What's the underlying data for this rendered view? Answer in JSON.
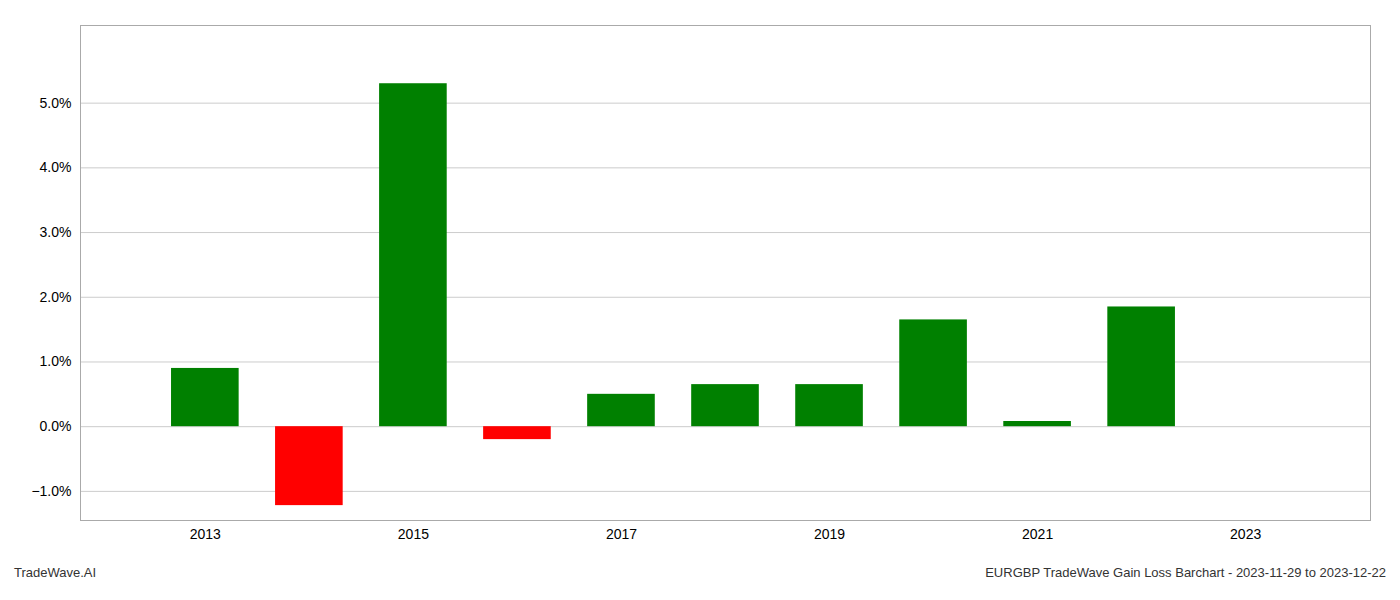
{
  "chart_data": {
    "type": "bar",
    "x": [
      2013,
      2014,
      2015,
      2016,
      2017,
      2018,
      2019,
      2020,
      2021,
      2022
    ],
    "values": [
      0.009,
      -0.0122,
      0.053,
      -0.002,
      0.005,
      0.0065,
      0.0065,
      0.0165,
      0.0008,
      0.0185
    ],
    "colors": [
      "#008000",
      "#ff0000",
      "#008000",
      "#ff0000",
      "#008000",
      "#008000",
      "#008000",
      "#008000",
      "#008000",
      "#008000"
    ],
    "xlim": [
      2011.8,
      2024.2
    ],
    "xticks": [
      2013,
      2015,
      2017,
      2019,
      2021,
      2023
    ],
    "ylim": [
      -0.0145,
      0.062
    ],
    "yticks": [
      {
        "value": -0.01,
        "label": "−1.0%"
      },
      {
        "value": 0.0,
        "label": "0.0%"
      },
      {
        "value": 0.01,
        "label": "1.0%"
      },
      {
        "value": 0.02,
        "label": "2.0%"
      },
      {
        "value": 0.03,
        "label": "3.0%"
      },
      {
        "value": 0.04,
        "label": "4.0%"
      },
      {
        "value": 0.05,
        "label": "5.0%"
      }
    ],
    "grid": true,
    "annotations": [
      "TradeWave.AI",
      "EURGBP TradeWave Gain Loss Barchart - 2023-11-29 to 2023-12-22"
    ]
  }
}
